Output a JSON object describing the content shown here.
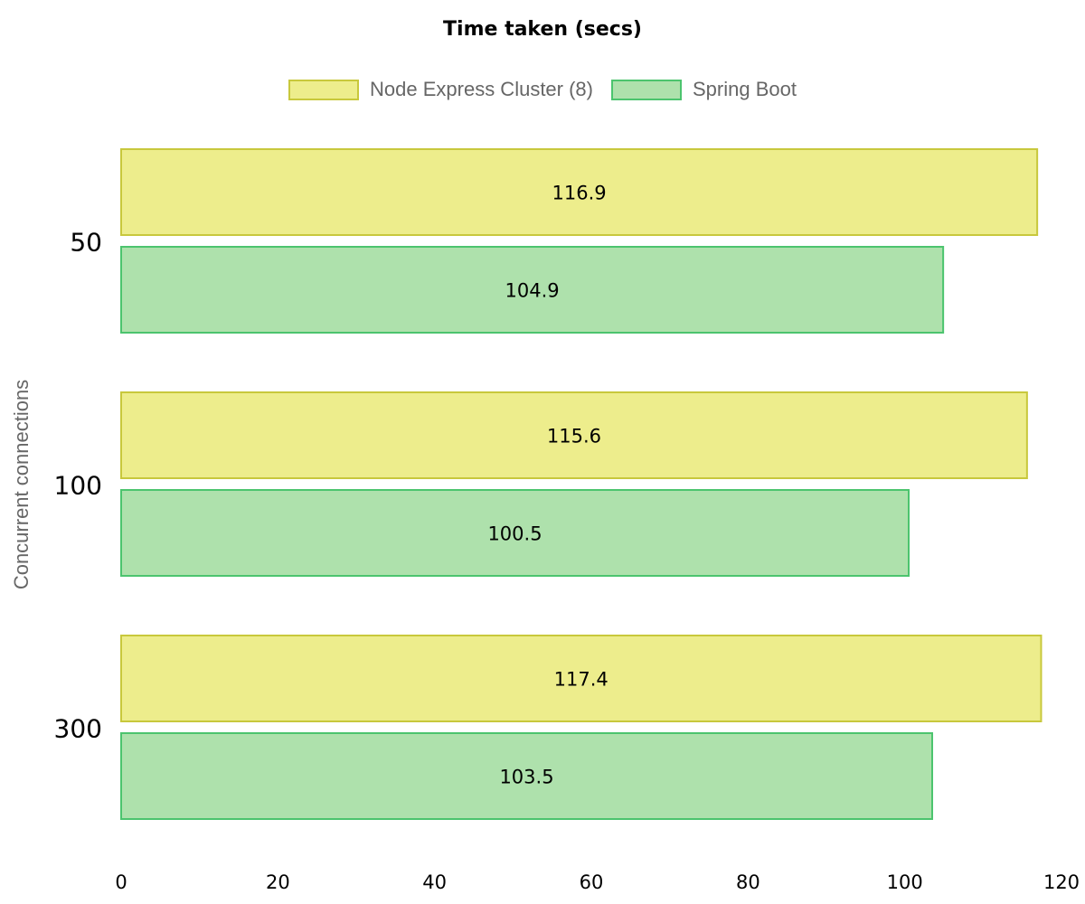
{
  "chart_data": {
    "type": "bar",
    "orientation": "horizontal",
    "title": "Time taken (secs)",
    "xlabel": "",
    "ylabel": "Concurrent connections",
    "categories": [
      "50",
      "100",
      "300"
    ],
    "series": [
      {
        "name": "Node Express Cluster (8)",
        "values": [
          116.9,
          115.6,
          117.4
        ],
        "fill": "#eded8c",
        "stroke": "#c8c83c"
      },
      {
        "name": "Spring Boot",
        "values": [
          104.9,
          100.5,
          103.5
        ],
        "fill": "#aee1ac",
        "stroke": "#4cc46e"
      }
    ],
    "xlim": [
      0,
      120
    ],
    "xticks": [
      0,
      20,
      40,
      60,
      80,
      100,
      120
    ],
    "grid": false,
    "legend_position": "top-center",
    "data_labels": true
  }
}
